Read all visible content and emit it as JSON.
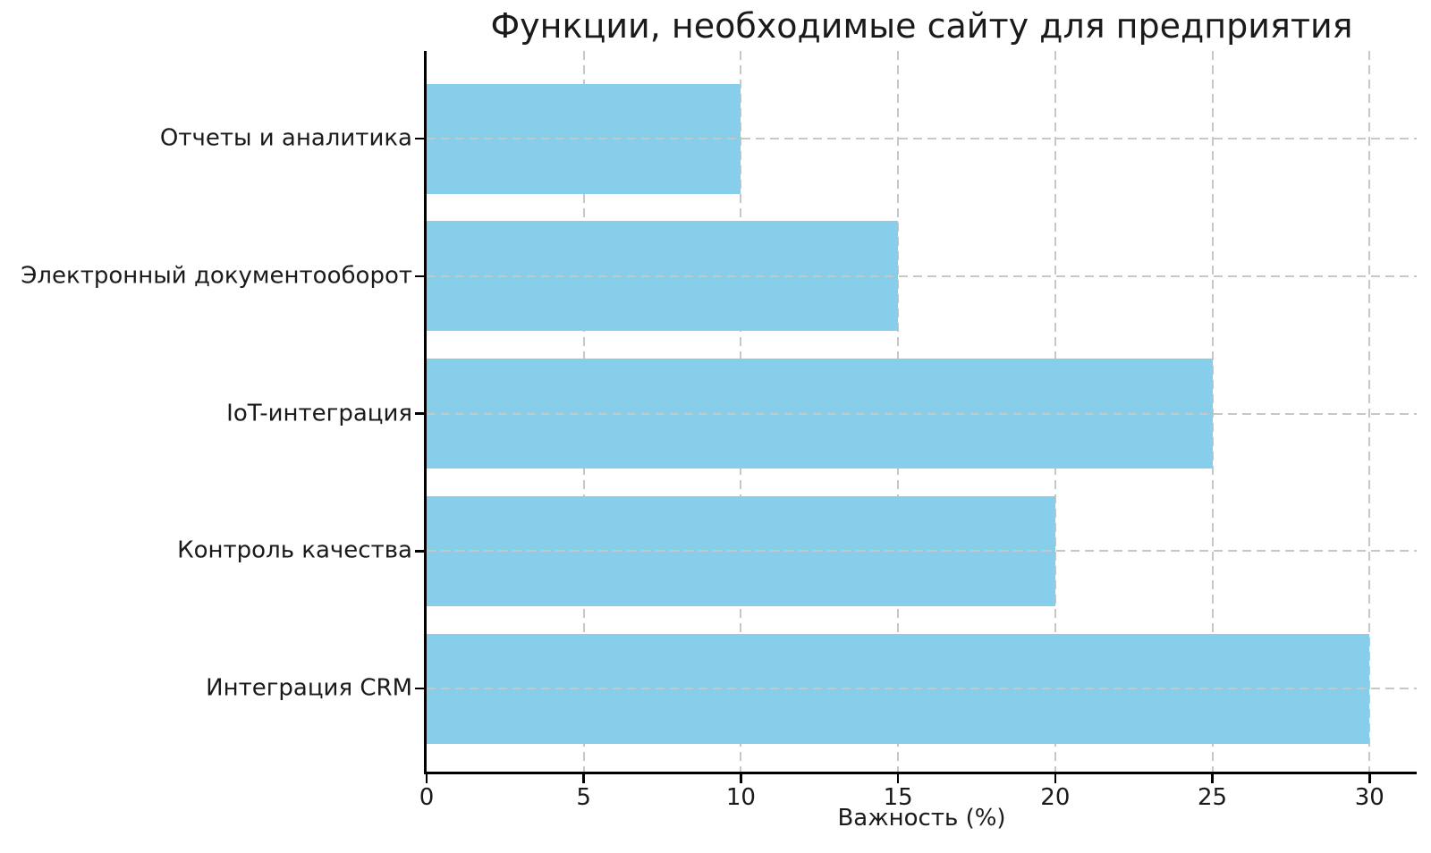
{
  "chart_data": {
    "type": "bar",
    "orientation": "horizontal",
    "title": "Функции, необходимые сайту для предприятия",
    "xlabel": "Важность (%)",
    "ylabel": "",
    "categories": [
      "Отчеты и аналитика",
      "Электронный документооборот",
      "IoT-интеграция",
      "Контроль качества",
      "Интеграция CRM"
    ],
    "values": [
      10,
      15,
      25,
      20,
      30
    ],
    "xticks": [
      0,
      5,
      10,
      15,
      20,
      25,
      30
    ],
    "xlim": [
      0,
      31.5
    ],
    "bar_color": "#87CEEB",
    "grid": true,
    "grid_style": "dashed",
    "grid_color": "#c7c7c7",
    "axis_color": "#000000",
    "text_color": "#1a1a1a",
    "legend": "none"
  }
}
